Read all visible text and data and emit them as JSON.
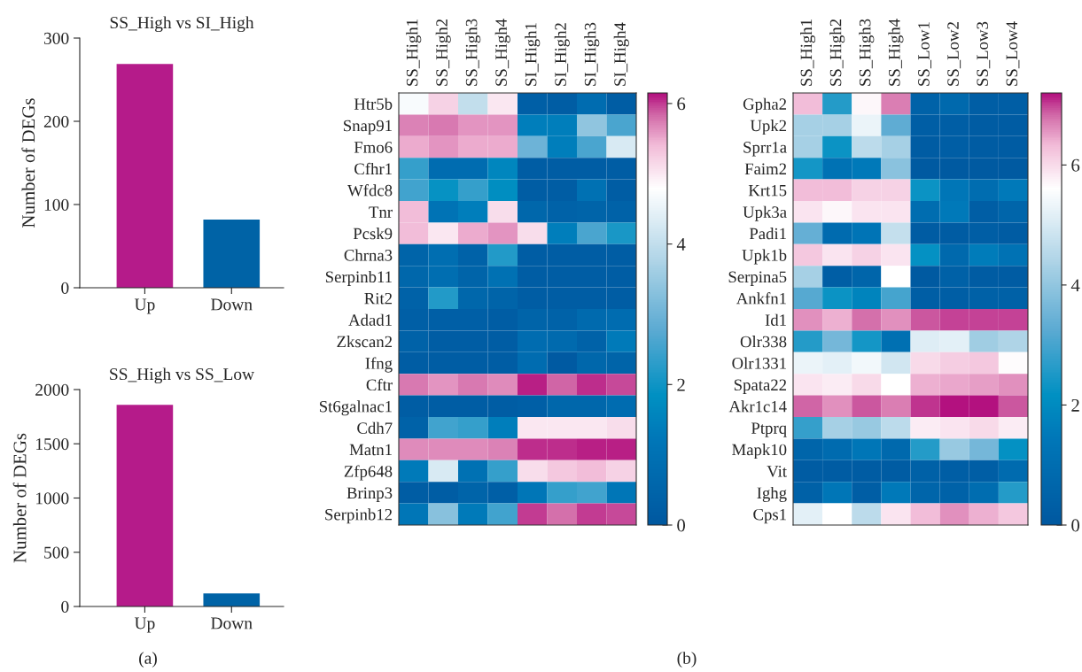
{
  "chart_data": [
    {
      "type": "bar",
      "title": "SS_High vs SI_High",
      "ylabel": "Number of DEGs",
      "categories": [
        "Up",
        "Down"
      ],
      "values": [
        269,
        82
      ],
      "colors": [
        "#b51b8a",
        "#0063a6"
      ],
      "ylim": [
        0,
        300
      ],
      "yticks": [
        0,
        100,
        200,
        300
      ],
      "grid": false,
      "legend": false
    },
    {
      "type": "bar",
      "title": "SS_High vs SS_Low",
      "ylabel": "Number of DEGs",
      "categories": [
        "Up",
        "Down"
      ],
      "values": [
        1860,
        120
      ],
      "colors": [
        "#b51b8a",
        "#0063a6"
      ],
      "ylim": [
        0,
        2000
      ],
      "yticks": [
        0,
        500,
        1000,
        1500,
        2000
      ],
      "grid": false,
      "legend": false,
      "annotations": [
        "(a)"
      ]
    },
    {
      "type": "heatmap",
      "categories": [
        "SS_High1",
        "SS_High2",
        "SS_High3",
        "SS_High4",
        "SI_High1",
        "SI_High2",
        "SI_High3",
        "SI_High4"
      ],
      "y_categories": [
        "Htr5b",
        "Snap91",
        "Fmo6",
        "Cfhr1",
        "Wfdc8",
        "Tnr",
        "Pcsk9",
        "Chrna3",
        "Serpinb11",
        "Rit2",
        "Adad1",
        "Zkscan2",
        "Ifng",
        "Cftr",
        "St6galnac1",
        "Cdh7",
        "Matn1",
        "Zfp648",
        "Brinp3",
        "Serpinb12"
      ],
      "cells": [
        [
          4.7,
          5.2,
          4.0,
          5.0,
          0.3,
          0.2,
          0.8,
          0.2
        ],
        [
          5.7,
          5.75,
          5.6,
          5.6,
          1.4,
          1.4,
          3.4,
          2.6
        ],
        [
          5.5,
          5.6,
          5.5,
          5.5,
          3.0,
          1.4,
          2.6,
          4.3
        ],
        [
          2.4,
          0.8,
          0.8,
          1.6,
          0.2,
          0.2,
          0.2,
          0.2
        ],
        [
          2.5,
          1.9,
          2.4,
          1.8,
          0.2,
          0.2,
          1.0,
          0.2
        ],
        [
          5.4,
          1.1,
          1.4,
          5.1,
          0.6,
          0.4,
          0.5,
          0.4
        ],
        [
          5.4,
          5.0,
          5.5,
          5.6,
          5.1,
          1.4,
          2.6,
          2.1
        ],
        [
          0.5,
          0.9,
          0.4,
          2.2,
          0.2,
          0.2,
          0.2,
          0.2
        ],
        [
          0.6,
          0.9,
          0.5,
          1.0,
          0.2,
          0.2,
          0.2,
          0.2
        ],
        [
          0.4,
          2.2,
          0.6,
          0.5,
          0.2,
          0.2,
          0.2,
          0.2
        ],
        [
          0.3,
          0.3,
          0.3,
          0.2,
          0.5,
          0.4,
          0.7,
          0.8
        ],
        [
          0.4,
          0.2,
          0.2,
          0.2,
          0.8,
          0.7,
          0.4,
          1.3
        ],
        [
          0.2,
          0.2,
          0.2,
          0.2,
          0.8,
          0.1,
          0.6,
          0.5
        ],
        [
          5.75,
          5.6,
          5.75,
          5.65,
          6.1,
          5.85,
          6.05,
          5.95
        ],
        [
          0.2,
          0.2,
          0.2,
          0.2,
          0.3,
          0.6,
          0.6,
          0.8
        ],
        [
          0.4,
          2.5,
          2.4,
          1.4,
          5.0,
          5.0,
          5.0,
          5.1
        ],
        [
          5.65,
          5.65,
          5.65,
          5.7,
          6.05,
          6.05,
          6.1,
          6.1
        ],
        [
          1.3,
          4.3,
          1.0,
          2.4,
          5.1,
          5.3,
          5.4,
          5.2
        ],
        [
          0.2,
          0.2,
          0.5,
          0.3,
          1.2,
          2.4,
          2.5,
          1.2
        ],
        [
          1.2,
          3.3,
          1.3,
          2.5,
          6.0,
          5.8,
          6.0,
          5.95
        ]
      ],
      "clim": [
        0,
        6.15
      ],
      "cticks": [
        0,
        2,
        4,
        6
      ],
      "annotations": [
        "(b)"
      ]
    },
    {
      "type": "heatmap",
      "categories": [
        "SS_High1",
        "SS_High2",
        "SS_High3",
        "SS_High4",
        "SS_Low1",
        "SS_Low2",
        "SS_Low3",
        "SS_Low4"
      ],
      "y_categories": [
        "Gpha2",
        "Upk2",
        "Sprr1a",
        "Faim2",
        "Krt15",
        "Upk3a",
        "Padi1",
        "Upk1b",
        "Serpina5",
        "Ankfn1",
        "Id1",
        "Olr338",
        "Olr1331",
        "Spata22",
        "Akr1c14",
        "Ptprq",
        "Mapk10",
        "Vit",
        "Ighg",
        "Cps1"
      ],
      "cells": [
        [
          6.3,
          2.6,
          5.7,
          6.7,
          0.5,
          0.8,
          0.3,
          0.3
        ],
        [
          4.3,
          4.3,
          5.3,
          3.3,
          0.3,
          0.3,
          0.2,
          0.2
        ],
        [
          4.3,
          2.3,
          4.6,
          4.3,
          0.2,
          0.3,
          0.2,
          0.2
        ],
        [
          2.4,
          1.2,
          1.5,
          3.9,
          0.1,
          0.1,
          0.1,
          0.1
        ],
        [
          6.3,
          6.3,
          6.1,
          6.1,
          2.3,
          1.4,
          1.0,
          1.5
        ],
        [
          5.9,
          5.7,
          5.9,
          5.9,
          1.0,
          1.5,
          0.3,
          0.6
        ],
        [
          3.4,
          0.9,
          1.3,
          4.7,
          0.2,
          0.2,
          0.3,
          0.2
        ],
        [
          6.2,
          5.9,
          6.1,
          5.9,
          2.2,
          0.8,
          1.6,
          1.2
        ],
        [
          4.3,
          0.3,
          0.6,
          5.6,
          0.1,
          0.4,
          0.2,
          0.2
        ],
        [
          3.2,
          2.3,
          1.8,
          3.0,
          0.3,
          0.3,
          0.4,
          0.4
        ],
        [
          6.6,
          6.4,
          6.8,
          6.6,
          6.9,
          7.0,
          7.0,
          7.0
        ],
        [
          2.6,
          3.6,
          2.4,
          1.1,
          5.1,
          5.2,
          4.2,
          4.4
        ],
        [
          5.3,
          5.2,
          5.4,
          4.9,
          6.0,
          6.15,
          6.2,
          5.65
        ],
        [
          5.9,
          5.8,
          6.0,
          5.6,
          6.4,
          6.45,
          6.5,
          6.6
        ],
        [
          6.85,
          6.6,
          6.9,
          6.7,
          7.05,
          7.2,
          7.2,
          6.9
        ],
        [
          2.8,
          4.3,
          4.1,
          4.6,
          5.8,
          5.9,
          6.0,
          5.8
        ],
        [
          0.6,
          0.9,
          1.4,
          0.8,
          2.6,
          4.1,
          3.6,
          2.2
        ],
        [
          0.2,
          0.2,
          0.2,
          0.2,
          0.4,
          0.3,
          0.3,
          0.9
        ],
        [
          0.4,
          1.4,
          0.3,
          1.5,
          0.6,
          0.5,
          1.0,
          2.6
        ],
        [
          5.2,
          5.6,
          4.6,
          5.9,
          6.3,
          6.6,
          6.4,
          6.2
        ]
      ],
      "clim": [
        0,
        7.2
      ],
      "cticks": [
        0,
        2,
        4,
        6
      ]
    }
  ]
}
